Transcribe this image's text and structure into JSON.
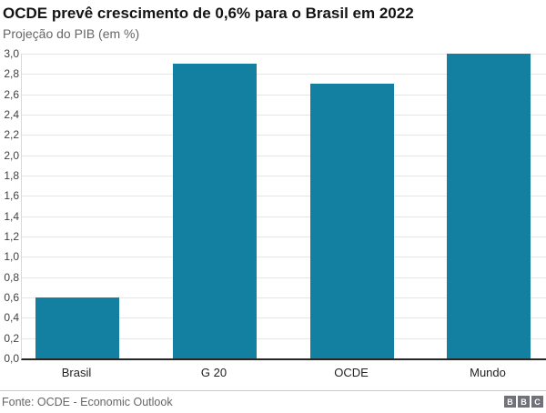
{
  "chart_data": {
    "type": "bar",
    "title": "OCDE prevê crescimento de 0,6% para o Brasil em 2022",
    "subtitle": "Projeção do PIB (em %)",
    "categories": [
      "Brasil",
      "G 20",
      "OCDE",
      "Mundo"
    ],
    "values": [
      0.6,
      2.9,
      2.7,
      3.0
    ],
    "ylim": [
      0,
      3.0
    ],
    "yticks": [
      {
        "value": 3.0,
        "label": "3,0"
      },
      {
        "value": 2.8,
        "label": "2,8"
      },
      {
        "value": 2.6,
        "label": "2,6"
      },
      {
        "value": 2.4,
        "label": "2,4"
      },
      {
        "value": 2.2,
        "label": "2,2"
      },
      {
        "value": 2.0,
        "label": "2,0"
      },
      {
        "value": 1.8,
        "label": "1,8"
      },
      {
        "value": 1.6,
        "label": "1,6"
      },
      {
        "value": 1.4,
        "label": "1,4"
      },
      {
        "value": 1.2,
        "label": "1,2"
      },
      {
        "value": 1.0,
        "label": "1,0"
      },
      {
        "value": 0.8,
        "label": "0,8"
      },
      {
        "value": 0.6,
        "label": "0,6"
      },
      {
        "value": 0.4,
        "label": "0,4"
      },
      {
        "value": 0.2,
        "label": "0,2"
      },
      {
        "value": 0.0,
        "label": "0,0"
      }
    ],
    "grid": "horizontal",
    "legend": "none",
    "xlabel": "",
    "ylabel": "",
    "bar_color": "#1380A1"
  },
  "colors": {
    "bar": "#1380A1",
    "axis": "#262626",
    "grid": "#e6e6e6",
    "subtitle_text": "#666666"
  },
  "footer": {
    "source": "Fonte: OCDE - Economic Outlook",
    "logo_letters": [
      "B",
      "B",
      "C"
    ]
  }
}
